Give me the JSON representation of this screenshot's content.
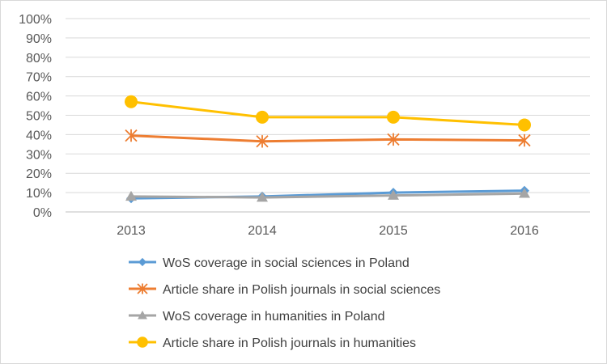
{
  "chart_data": {
    "type": "line",
    "title": "",
    "xlabel": "",
    "ylabel": "",
    "categories": [
      "2013",
      "2014",
      "2015",
      "2016"
    ],
    "ylim": [
      0,
      100
    ],
    "yticks": [
      0,
      10,
      20,
      30,
      40,
      50,
      60,
      70,
      80,
      90,
      100
    ],
    "ytick_labels": [
      "0%",
      "10%",
      "20%",
      "30%",
      "40%",
      "50%",
      "60%",
      "70%",
      "80%",
      "90%",
      "100%"
    ],
    "grid": true,
    "legend_position": "bottom",
    "series": [
      {
        "name": "WoS coverage in social sciences in Poland",
        "values": [
          7,
          8,
          10,
          11
        ],
        "color": "#5b9bd5",
        "marker": "diamond"
      },
      {
        "name": "Article share in Polish journals in social sciences",
        "values": [
          39.5,
          36.5,
          37.5,
          37
        ],
        "color": "#ed7d31",
        "marker": "asterisk"
      },
      {
        "name": "WoS coverage in humanities in Poland",
        "values": [
          8,
          7.5,
          8.5,
          9.5
        ],
        "color": "#a5a5a5",
        "marker": "triangle"
      },
      {
        "name": "Article share in Polish journals in humanities",
        "values": [
          57,
          49,
          49,
          45
        ],
        "color": "#ffc000",
        "marker": "circle"
      }
    ]
  }
}
